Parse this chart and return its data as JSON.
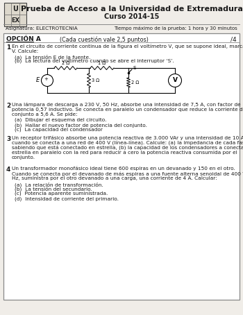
{
  "title_line1": "Prueba de Acceso a la Universidad de Extremadura",
  "title_line2": "Curso 2014-15",
  "asignatura_label": "Asignatura: ELECTROTECNIA",
  "tiempo_label": "Tiempo máximo de la prueba: 1 hora y 30 minutos",
  "opcion_label": "OPCIÓN A",
  "cada_label": "(Cada cuestión vale 2,5 puntos)",
  "score_label": "/4",
  "q1_num": "1",
  "q1_line1": "En el circuito de corriente continua de la figura el voltímetro V, que se supone ideal, marca 10",
  "q1_line2": "V. Calcule:",
  "q1a": "(a)  La tensión E de la fuente.",
  "q1b": "(b)  La lectura del voltímetro cuando se abre el interruptor ‘S’.",
  "q2_num": "2",
  "q2_line1": "Una lámpara de descarga a 230 V, 50 Hz, absorbe una intensidad de 7,5 A, con factor de",
  "q2_line2": "potencia 0,57 inductivo. Se conecta en paralelo un condensador que reduce la corriente del",
  "q2_line3": "conjunto a 5,6 A. Se pide:",
  "q2a": "(a)  Dibujar el esquema del circuito.",
  "q2b": "(b)  Hallar el nuevo factor de potencia del conjunto.",
  "q2c": "(c)  La capacidad del condensador",
  "q3_num": "3",
  "q3_line1": "Un receptor trifásico absorbe una potencia reactiva de 3.000 VAr y una intensidad de 10 A,",
  "q3_line2": "cuando se conecta a una red de 400 V (línea-línea). Calcule: (a) la impedancia de cada fase",
  "q3_line3": "sabiendo que está conectado en estrella, (b) la capacidad de los condensadores a conectar en",
  "q3_line4": "estrella en paralelo con la red para reducir a cero la potencia reactiva consumida por el",
  "q3_line5": "conjunto.",
  "q4_num": "4",
  "q4_line1": "Un transformador monofásico ideal tiene 600 espiras en un devanado y 150 en el otro.",
  "q4_line2": "Cuando se conecta por el devanado de más espiras a una fuente alterna senoidal de 400 V, 50",
  "q4_line3": "Hz, suministra por el otro devanado a una carga, una corriente de 4 A. Calcular:",
  "q4a": "(a)  La relación de transformación.",
  "q4b": "(b)  La tensión del secundario.",
  "q4c": "(c)  Potencia aparente suministrada.",
  "q4d": "(d)  Intensidad de corriente del primario.",
  "bg_color": "#f0ede8",
  "box_color": "#ffffff",
  "border_color": "#888888",
  "text_color": "#1a1a1a",
  "resistor_2ohm_label": "2 Ω",
  "resistor_1ohm_label": "1 Ω",
  "resistor_3ohm_label": "3 Ω",
  "resistor_2ohm2_label": "2 Ω",
  "switch_label": "S",
  "source_label": "E",
  "voltmeter_label": "V"
}
